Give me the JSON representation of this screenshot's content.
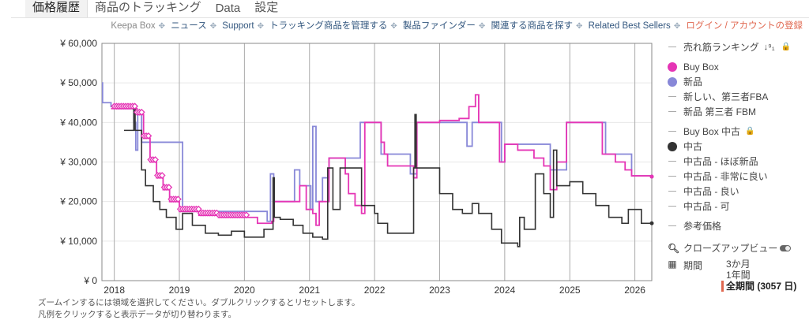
{
  "tabs": [
    {
      "label": "価格履歴",
      "active": true
    },
    {
      "label": "商品のトラッキング"
    },
    {
      "label": "Data"
    },
    {
      "label": "設定"
    }
  ],
  "links": [
    "Keepa Box",
    "ニュース",
    "Support",
    "トラッキング商品を管理する",
    "製品ファインダー",
    "関連する商品を探す",
    "Related Best Sellers",
    "ログイン / アカウントの登録"
  ],
  "legend": {
    "sales_rank": "売れ筋ランキング",
    "buy_box": "Buy Box",
    "new": "新品",
    "new_fba": "新しい、第三者FBA",
    "new_fbm": "新品 第三者 FBM",
    "buy_box_used": "Buy Box 中古",
    "used": "中古",
    "used_like_new": "中古品 - ほぼ新品",
    "used_very_good": "中古品 - 非常に良い",
    "used_good": "中古品 - 良い",
    "used_acceptable": "中古品 - 可",
    "list_price": "参考価格"
  },
  "tools": {
    "closeup": "クローズアップビュー",
    "range_label": "期間",
    "range_3m": "3か月",
    "range_1y": "1年間",
    "range_all": "全期間 (3057 日)"
  },
  "notes": [
    "ズームインするには領域を選択してください。ダブルクリックするとリセットします。",
    "凡例をクリックすると表示データが切り替わります。"
  ],
  "colors": {
    "buy_box": "#e535b5",
    "new": "#8888d8",
    "used": "#333333",
    "accent": "#e0674f"
  },
  "chart_data": {
    "type": "line",
    "xlim": [
      2017.81,
      2026.26
    ],
    "ylim": [
      0,
      60000
    ],
    "yticks": [
      0,
      10000,
      20000,
      30000,
      40000,
      50000,
      60000
    ],
    "ytick_labels": [
      "¥ 0",
      "¥ 10,000",
      "¥ 20,000",
      "¥ 30,000",
      "¥ 40,000",
      "¥ 50,000",
      "¥ 60,000"
    ],
    "xticks": [
      2018,
      2019,
      2020,
      2021,
      2022,
      2023,
      2024,
      2025,
      2026
    ],
    "xtick_labels": [
      "2018",
      "2019",
      "2020",
      "2021",
      "2022",
      "2023",
      "2024",
      "2025",
      "2026"
    ],
    "series": [
      {
        "name": "新品",
        "color": "#8888d8",
        "points": [
          [
            2017.81,
            50000
          ],
          [
            2017.82,
            45000
          ],
          [
            2017.95,
            44000
          ],
          [
            2018.05,
            43500
          ],
          [
            2018.3,
            40000
          ],
          [
            2018.33,
            33000
          ],
          [
            2018.36,
            43000
          ],
          [
            2018.42,
            35000
          ],
          [
            2019.05,
            17500
          ],
          [
            2020.35,
            15000
          ],
          [
            2020.4,
            27000
          ],
          [
            2020.45,
            20000
          ],
          [
            2020.75,
            20000
          ],
          [
            2020.77,
            28000
          ],
          [
            2020.85,
            24000
          ],
          [
            2021.02,
            18000
          ],
          [
            2021.05,
            39000
          ],
          [
            2021.1,
            20000
          ],
          [
            2021.2,
            26000
          ],
          [
            2021.3,
            31000
          ],
          [
            2021.75,
            31000
          ],
          [
            2021.78,
            40000
          ],
          [
            2022.07,
            40000
          ],
          [
            2022.1,
            32000
          ],
          [
            2022.55,
            27000
          ],
          [
            2022.65,
            40000
          ],
          [
            2023.4,
            40000
          ],
          [
            2023.42,
            34000
          ],
          [
            2023.5,
            40000
          ],
          [
            2023.95,
            30000
          ],
          [
            2024.0,
            34500
          ],
          [
            2024.7,
            28000
          ],
          [
            2024.92,
            28000
          ],
          [
            2024.95,
            40000
          ],
          [
            2025.48,
            40000
          ],
          [
            2025.55,
            32000
          ],
          [
            2025.95,
            26500
          ],
          [
            2026.26,
            26300
          ]
        ]
      },
      {
        "name": "Buy Box",
        "color": "#e535b5",
        "points": [
          [
            2017.95,
            43500
          ],
          [
            2018.3,
            43500
          ],
          [
            2018.35,
            42000
          ],
          [
            2018.45,
            36000
          ],
          [
            2018.55,
            30000
          ],
          [
            2018.65,
            26000
          ],
          [
            2018.75,
            23000
          ],
          [
            2018.85,
            20000
          ],
          [
            2019.0,
            17500
          ],
          [
            2019.3,
            16500
          ],
          [
            2019.6,
            16000
          ],
          [
            2020.1,
            16000
          ],
          [
            2020.2,
            14500
          ],
          [
            2020.42,
            15000
          ],
          [
            2020.45,
            20000
          ],
          [
            2020.78,
            20000
          ],
          [
            2020.85,
            24000
          ],
          [
            2020.95,
            18000
          ],
          [
            2021.05,
            17000
          ],
          [
            2021.1,
            14000
          ],
          [
            2021.15,
            20000
          ],
          [
            2021.3,
            31000
          ],
          [
            2021.53,
            31000
          ],
          [
            2021.55,
            27000
          ],
          [
            2021.6,
            22000
          ],
          [
            2021.7,
            19000
          ],
          [
            2021.8,
            17000
          ],
          [
            2021.85,
            40000
          ],
          [
            2022.07,
            40000
          ],
          [
            2022.1,
            35000
          ],
          [
            2022.15,
            32000
          ],
          [
            2022.2,
            29000
          ],
          [
            2022.55,
            29000
          ],
          [
            2022.6,
            26000
          ],
          [
            2022.65,
            40000
          ],
          [
            2023.0,
            40500
          ],
          [
            2023.3,
            41000
          ],
          [
            2023.45,
            44000
          ],
          [
            2023.55,
            47000
          ],
          [
            2023.6,
            40000
          ],
          [
            2023.9,
            40000
          ],
          [
            2023.92,
            30000
          ],
          [
            2024.0,
            34500
          ],
          [
            2024.2,
            33000
          ],
          [
            2024.45,
            31000
          ],
          [
            2024.6,
            29000
          ],
          [
            2024.7,
            23000
          ],
          [
            2024.8,
            30000
          ],
          [
            2024.95,
            40000
          ],
          [
            2025.48,
            40000
          ],
          [
            2025.5,
            32000
          ],
          [
            2025.7,
            30000
          ],
          [
            2025.85,
            28000
          ],
          [
            2025.95,
            26500
          ],
          [
            2026.26,
            26300
          ]
        ]
      },
      {
        "name": "中古",
        "color": "#333333",
        "points": [
          [
            2018.15,
            38000
          ],
          [
            2018.3,
            43500
          ],
          [
            2018.32,
            38000
          ],
          [
            2018.4,
            38000
          ],
          [
            2018.42,
            28000
          ],
          [
            2018.48,
            24000
          ],
          [
            2018.6,
            20000
          ],
          [
            2018.7,
            18000
          ],
          [
            2018.8,
            16000
          ],
          [
            2018.95,
            13000
          ],
          [
            2019.05,
            17000
          ],
          [
            2019.2,
            14000
          ],
          [
            2019.4,
            12000
          ],
          [
            2019.6,
            11500
          ],
          [
            2019.8,
            12500
          ],
          [
            2020.0,
            11000
          ],
          [
            2020.2,
            11000
          ],
          [
            2020.3,
            13000
          ],
          [
            2020.44,
            26000
          ],
          [
            2020.46,
            16000
          ],
          [
            2020.55,
            15500
          ],
          [
            2020.75,
            14000
          ],
          [
            2020.9,
            12000
          ],
          [
            2021.05,
            11000
          ],
          [
            2021.2,
            10500
          ],
          [
            2021.28,
            28500
          ],
          [
            2021.36,
            18000
          ],
          [
            2021.47,
            28500
          ],
          [
            2021.78,
            28500
          ],
          [
            2021.8,
            19000
          ],
          [
            2022.0,
            17000
          ],
          [
            2022.05,
            14500
          ],
          [
            2022.2,
            12000
          ],
          [
            2022.55,
            12000
          ],
          [
            2022.6,
            28500
          ],
          [
            2022.62,
            42000
          ],
          [
            2022.64,
            28500
          ],
          [
            2022.85,
            28500
          ],
          [
            2023.0,
            22000
          ],
          [
            2023.2,
            18000
          ],
          [
            2023.35,
            17000
          ],
          [
            2023.5,
            19500
          ],
          [
            2023.6,
            17000
          ],
          [
            2023.8,
            13000
          ],
          [
            2023.95,
            9500
          ],
          [
            2024.2,
            8600
          ],
          [
            2024.23,
            16000
          ],
          [
            2024.3,
            13000
          ],
          [
            2024.45,
            13000
          ],
          [
            2024.47,
            27000
          ],
          [
            2024.6,
            22000
          ],
          [
            2024.7,
            16000
          ],
          [
            2024.75,
            33000
          ],
          [
            2024.8,
            24000
          ],
          [
            2025.0,
            25000
          ],
          [
            2025.2,
            22000
          ],
          [
            2025.4,
            19000
          ],
          [
            2025.6,
            16000
          ],
          [
            2025.8,
            14500
          ],
          [
            2025.9,
            18000
          ],
          [
            2026.05,
            18000
          ],
          [
            2026.1,
            14500
          ],
          [
            2026.26,
            14500
          ]
        ]
      }
    ],
    "markers": {
      "series": "Buy Box",
      "range": [
        2018.0,
        2020.05
      ],
      "shape": "diamond"
    }
  }
}
